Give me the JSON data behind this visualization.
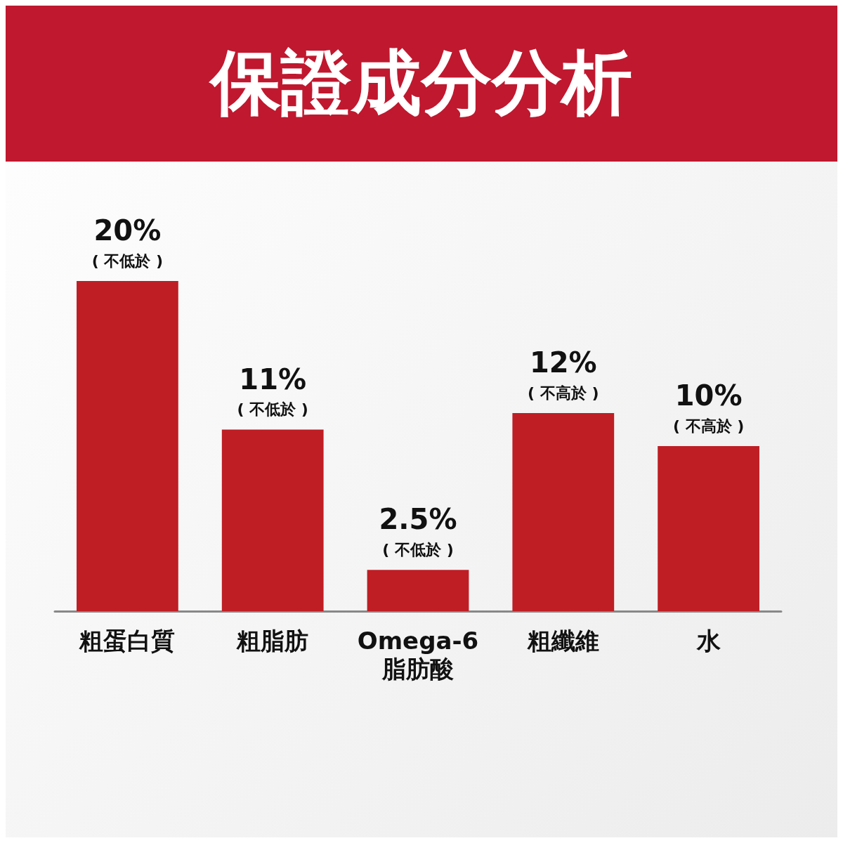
{
  "chart_data": {
    "type": "bar",
    "title": "保證成分分析",
    "categories": [
      "粗蛋白質",
      "粗脂肪",
      "Omega-6\n脂肪酸",
      "粗纖維",
      "水"
    ],
    "values": [
      20,
      11,
      2.5,
      12,
      10
    ],
    "color": "#be1e24",
    "value_labels": [
      "20%\n( 不低於 )",
      "11%\n( 不低於 )",
      "2.5%\n( 不低於 )",
      "12%\n( 不高於 )",
      "10%\n( 不高於 )"
    ]
  }
}
